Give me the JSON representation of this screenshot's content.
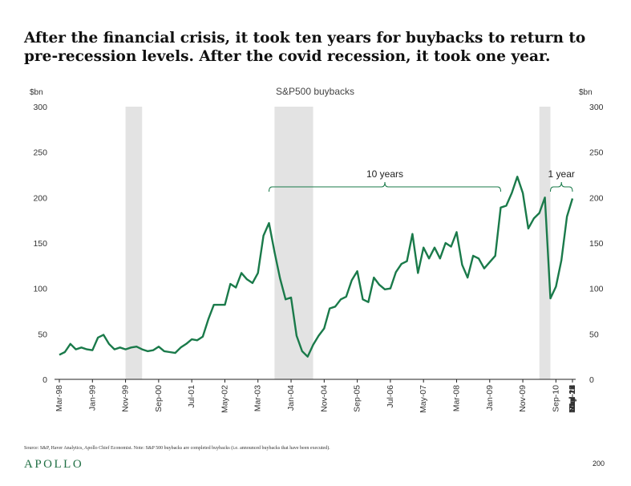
{
  "headline": {
    "line1": "After the financial crisis, it took ten years for buybacks to return to",
    "line2": "pre-recession levels. After the covid recession, it took one year."
  },
  "chart_data": {
    "type": "line",
    "title": "S&P500 buybacks",
    "ylabel_left": "$bn",
    "ylabel_right": "$bn",
    "ylim": [
      0,
      300
    ],
    "yticks": [
      0,
      50,
      100,
      150,
      200,
      250,
      300
    ],
    "x_tick_labels": [
      "Mar-98",
      "Jan-99",
      "Nov-99",
      "Sep-00",
      "Jul-01",
      "May-02",
      "Mar-03",
      "Jan-04",
      "Nov-04",
      "Sep-05",
      "Jul-06",
      "May-07",
      "Mar-08",
      "Jan-09",
      "Nov-09",
      "Sep-10",
      "Jul-11",
      "May-12",
      "Mar-13",
      "Jan-14",
      "Nov-14",
      "Sep-15",
      "Jul-16",
      "May-17",
      "Mar-18",
      "Jan-19",
      "Nov-19",
      "Sep-20",
      "Jul-21"
    ],
    "series": [
      {
        "name": "S&P500 buybacks",
        "color": "#1a7a4a",
        "x_start": "Mar-98",
        "frequency": "quarterly",
        "values": [
          27,
          30,
          39,
          33,
          35,
          33,
          32,
          46,
          49,
          39,
          33,
          35,
          33,
          35,
          36,
          33,
          31,
          32,
          36,
          31,
          30,
          29,
          35,
          39,
          44,
          43,
          47,
          66,
          82,
          82,
          82,
          105,
          101,
          117,
          110,
          106,
          117,
          158,
          172,
          140,
          111,
          88,
          90,
          48,
          31,
          25,
          38,
          48,
          56,
          78,
          80,
          88,
          91,
          109,
          119,
          88,
          85,
          112,
          104,
          99,
          100,
          118,
          127,
          130,
          160,
          117,
          145,
          133,
          145,
          133,
          150,
          146,
          162,
          126,
          112,
          136,
          133,
          122,
          129,
          136,
          189,
          191,
          205,
          223,
          205,
          166,
          177,
          183,
          200,
          89,
          102,
          131,
          179,
          199
        ]
      }
    ],
    "recession_bands": [
      {
        "start_index": 12,
        "end_index": 15
      },
      {
        "start_index": 39,
        "end_index": 46
      },
      {
        "start_index": 87,
        "end_index": 89
      }
    ],
    "annotations": [
      {
        "label": "10 years",
        "from_index": 38,
        "to_index": 80
      },
      {
        "label": "1 year",
        "from_index": 89,
        "to_index": 93
      }
    ]
  },
  "footnote": "Source: S&P, Haver Analytics, Apollo Chief Economist. Note: S&P 500 buybacks are completed buybacks (i.e. announced buybacks that have been executed).",
  "logo_text": "APOLLO",
  "page_number": "200"
}
